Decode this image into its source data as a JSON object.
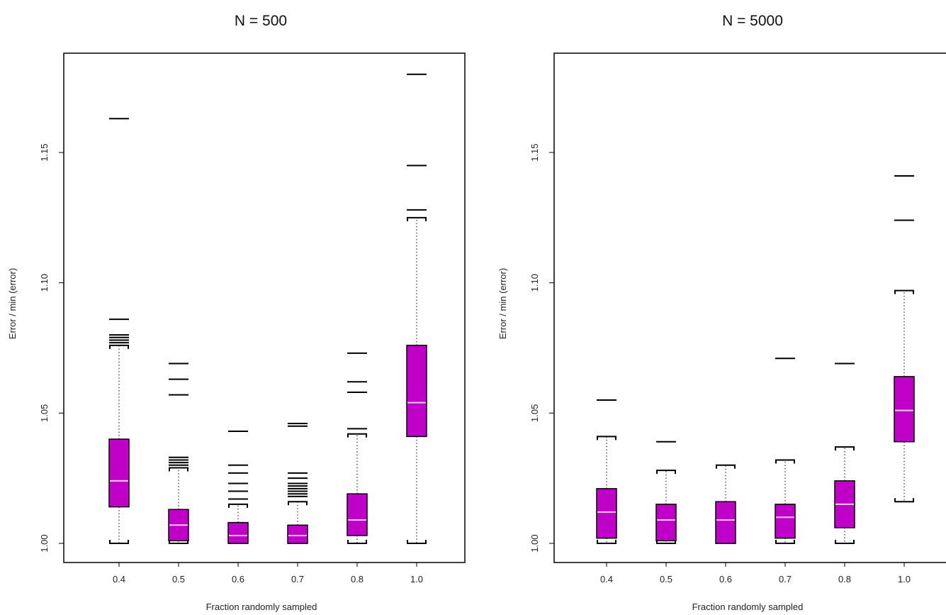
{
  "colors": {
    "box_fill": "#c000c8",
    "median": "#f4c9f6",
    "ink": "#000000"
  },
  "chart_data": [
    {
      "type": "box",
      "title": "N = 500",
      "xlabel": "Fraction randomly sampled",
      "ylabel": "Error / min (error)",
      "categories": [
        "0.4",
        "0.5",
        "0.6",
        "0.7",
        "0.8",
        "1.0"
      ],
      "ylim": [
        0.995,
        1.185
      ],
      "yticks": [
        1.0,
        1.05,
        1.1,
        1.15
      ],
      "ytick_labels": [
        "1.00",
        "1.05",
        "1.10",
        "1.15"
      ],
      "boxes": [
        {
          "category": "0.4",
          "whisker_low": 1.0,
          "q1": 1.014,
          "median": 1.024,
          "q3": 1.04,
          "whisker_high": 1.076,
          "outliers": [
            1.077,
            1.078,
            1.079,
            1.08,
            1.086,
            1.163
          ]
        },
        {
          "category": "0.5",
          "whisker_low": 1.0,
          "q1": 1.001,
          "median": 1.007,
          "q3": 1.013,
          "whisker_high": 1.029,
          "outliers": [
            1.03,
            1.031,
            1.032,
            1.033,
            1.057,
            1.063,
            1.069
          ]
        },
        {
          "category": "0.6",
          "whisker_low": 1.0,
          "q1": 1.0,
          "median": 1.003,
          "q3": 1.008,
          "whisker_high": 1.015,
          "outliers": [
            1.017,
            1.02,
            1.023,
            1.027,
            1.03,
            1.043
          ]
        },
        {
          "category": "0.7",
          "whisker_low": 1.0,
          "q1": 1.0,
          "median": 1.003,
          "q3": 1.007,
          "whisker_high": 1.016,
          "outliers": [
            1.018,
            1.019,
            1.02,
            1.021,
            1.022,
            1.023,
            1.025,
            1.027,
            1.045,
            1.046
          ]
        },
        {
          "category": "0.8",
          "whisker_low": 1.0,
          "q1": 1.003,
          "median": 1.009,
          "q3": 1.019,
          "whisker_high": 1.042,
          "outliers": [
            1.044,
            1.058,
            1.062,
            1.073
          ]
        },
        {
          "category": "1.0",
          "whisker_low": 1.0,
          "q1": 1.041,
          "median": 1.054,
          "q3": 1.076,
          "whisker_high": 1.125,
          "outliers": [
            1.128,
            1.145,
            1.18
          ]
        }
      ]
    },
    {
      "type": "box",
      "title": "N = 5000",
      "xlabel": "Fraction randomly sampled",
      "ylabel": "Error / min (error)",
      "categories": [
        "0.4",
        "0.5",
        "0.6",
        "0.7",
        "0.8",
        "1.0"
      ],
      "ylim": [
        0.995,
        1.185
      ],
      "yticks": [
        1.0,
        1.05,
        1.1,
        1.15
      ],
      "ytick_labels": [
        "1.00",
        "1.05",
        "1.10",
        "1.15"
      ],
      "boxes": [
        {
          "category": "0.4",
          "whisker_low": 1.0,
          "q1": 1.002,
          "median": 1.012,
          "q3": 1.021,
          "whisker_high": 1.041,
          "outliers": [
            1.055
          ]
        },
        {
          "category": "0.5",
          "whisker_low": 1.0,
          "q1": 1.001,
          "median": 1.009,
          "q3": 1.015,
          "whisker_high": 1.028,
          "outliers": [
            1.039
          ]
        },
        {
          "category": "0.6",
          "whisker_low": 1.0,
          "q1": 1.0,
          "median": 1.009,
          "q3": 1.016,
          "whisker_high": 1.03,
          "outliers": []
        },
        {
          "category": "0.7",
          "whisker_low": 1.0,
          "q1": 1.002,
          "median": 1.01,
          "q3": 1.015,
          "whisker_high": 1.032,
          "outliers": [
            1.071
          ]
        },
        {
          "category": "0.8",
          "whisker_low": 1.0,
          "q1": 1.006,
          "median": 1.015,
          "q3": 1.024,
          "whisker_high": 1.037,
          "outliers": [
            1.069
          ]
        },
        {
          "category": "1.0",
          "whisker_low": 1.016,
          "q1": 1.039,
          "median": 1.051,
          "q3": 1.064,
          "whisker_high": 1.097,
          "outliers": [
            1.124,
            1.141
          ]
        }
      ]
    }
  ]
}
